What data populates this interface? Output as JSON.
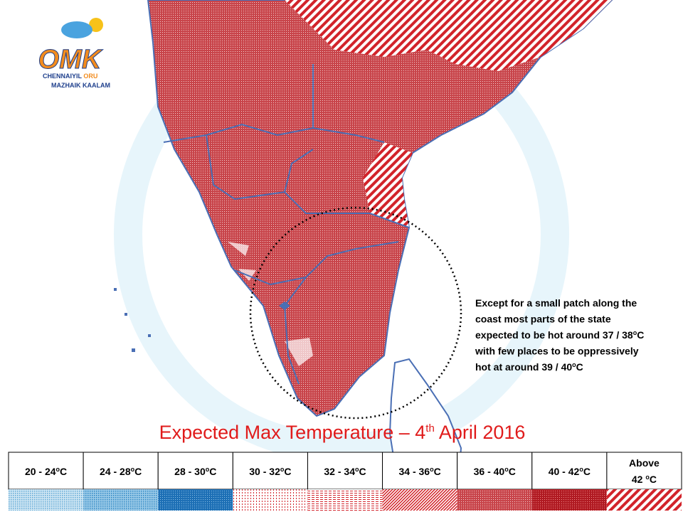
{
  "logo": {
    "mark": "OMK",
    "line1": [
      "CHENNAIYIL",
      "ORU"
    ],
    "line2": [
      "MAZHAIK",
      "KAALAM"
    ]
  },
  "annotation": [
    {
      "text": "Except for a small patch along the"
    },
    {
      "text": "coast most parts of the state"
    },
    {
      "text": "expected to be hot around 37 / 38",
      "sup": "o",
      "after": "C"
    },
    {
      "text": "with few places to be oppressively"
    },
    {
      "text": "hot at around 39 / 40",
      "sup": "o",
      "after": "C"
    }
  ],
  "title": {
    "text": "Expected Max Temperature – 4",
    "sup": "th",
    "after": " April 2016"
  },
  "legend": [
    {
      "text": "20 - 24",
      "sup": "o",
      "after": "C"
    },
    {
      "text": "24 - 28",
      "sup": "o",
      "after": "C"
    },
    {
      "text": "28 - 30",
      "sup": "o",
      "after": "C"
    },
    {
      "text": "30 - 32",
      "sup": "o",
      "after": "C"
    },
    {
      "text": "32 - 34",
      "sup": "o",
      "after": "C"
    },
    {
      "text": "34 - 36",
      "sup": "o",
      "after": "C"
    },
    {
      "text": "36 - 40",
      "sup": "o",
      "after": "C"
    },
    {
      "text": "40 - 42",
      "sup": "o",
      "after": "C"
    },
    {
      "head": "Above",
      "text": "42 ",
      "sup": "o",
      "after": "C"
    }
  ]
}
